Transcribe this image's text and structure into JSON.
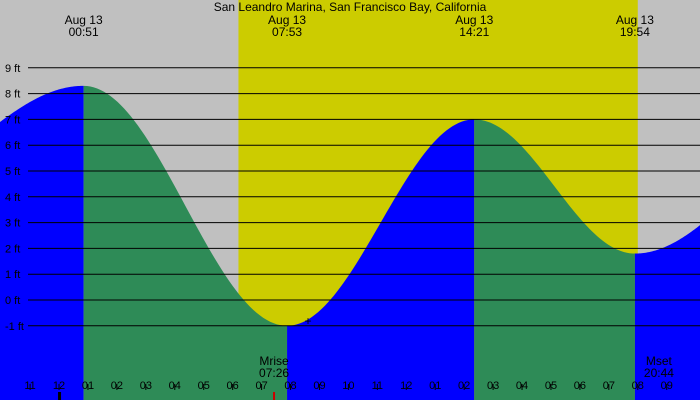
{
  "chart_data": {
    "type": "area",
    "title": "San Leandro Marina, San Francisco Bay, California",
    "ylim": [
      -2,
      10
    ],
    "y_ticks": [
      {
        "v": 9,
        "label": "9 ft"
      },
      {
        "v": 8,
        "label": "8 ft"
      },
      {
        "v": 7,
        "label": "7 ft"
      },
      {
        "v": 6,
        "label": "6 ft"
      },
      {
        "v": 5,
        "label": "5 ft"
      },
      {
        "v": 4,
        "label": "4 ft"
      },
      {
        "v": 3,
        "label": "3 ft"
      },
      {
        "v": 2,
        "label": "2 ft"
      },
      {
        "v": 1,
        "label": "1 ft"
      },
      {
        "v": 0,
        "label": "0 ft"
      },
      {
        "v": -1,
        "label": "-1 ft"
      }
    ],
    "x_start_hours": -2.04,
    "x_end_hours": 22.15,
    "x_ticks": [
      {
        "h": -1,
        "label": "11"
      },
      {
        "h": 0,
        "label": "12"
      },
      {
        "h": 1,
        "label": "01"
      },
      {
        "h": 2,
        "label": "02"
      },
      {
        "h": 3,
        "label": "03"
      },
      {
        "h": 4,
        "label": "04"
      },
      {
        "h": 5,
        "label": "05"
      },
      {
        "h": 6,
        "label": "06"
      },
      {
        "h": 7,
        "label": "07"
      },
      {
        "h": 8,
        "label": "08"
      },
      {
        "h": 9,
        "label": "09"
      },
      {
        "h": 10,
        "label": "10"
      },
      {
        "h": 11,
        "label": "11"
      },
      {
        "h": 12,
        "label": "12"
      },
      {
        "h": 13,
        "label": "01"
      },
      {
        "h": 14,
        "label": "02"
      },
      {
        "h": 15,
        "label": "03"
      },
      {
        "h": 16,
        "label": "04"
      },
      {
        "h": 17,
        "label": "05"
      },
      {
        "h": 18,
        "label": "06"
      },
      {
        "h": 19,
        "label": "07"
      },
      {
        "h": 20,
        "label": "08"
      },
      {
        "h": 21,
        "label": "09"
      }
    ],
    "tide_extremes": [
      {
        "h": 0.85,
        "ft": 8.3,
        "type": "high",
        "date": "Aug 13",
        "time": "00:51"
      },
      {
        "h": 7.88,
        "ft": -1.0,
        "type": "low",
        "date": "Aug 13",
        "time": "07:53"
      },
      {
        "h": 14.35,
        "ft": 7.0,
        "type": "high",
        "date": "Aug 13",
        "time": "14:21"
      },
      {
        "h": 19.9,
        "ft": 1.8,
        "type": "low",
        "date": "Aug 13",
        "time": "19:54"
      }
    ],
    "edge_levels": {
      "start_ft": 6.9,
      "end_ft": 2.9
    },
    "daylight": {
      "start_h": 6.2,
      "end_h": 20.0
    },
    "moon": [
      {
        "label": "Mrise",
        "time": "07:26",
        "h": 7.43
      },
      {
        "label": "Mset",
        "time": "20:44",
        "h": 20.73
      }
    ],
    "grid": true,
    "colors": {
      "background": "#c0c0c0",
      "daylight": "#cccc00",
      "rising": "#0000ff",
      "falling": "#2e8b57",
      "grid": "#000000",
      "moon_marker": "#cc0000"
    }
  }
}
